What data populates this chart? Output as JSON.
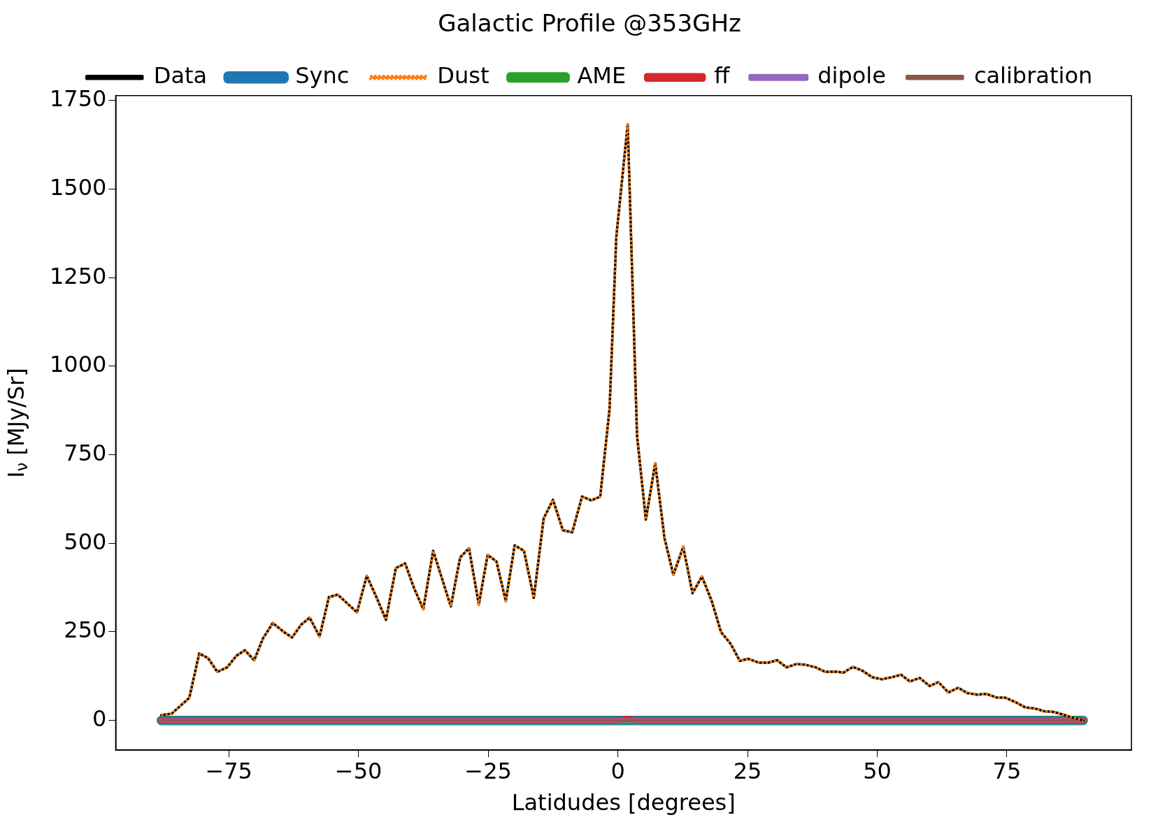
{
  "chart_data": {
    "type": "line",
    "title": "Galactic Profile @353GHz",
    "xlabel": "Latidudes [degrees]",
    "ylabel": "I$_{ν}$ [MJy/Sr]",
    "x": [
      -88,
      -86,
      -82.6,
      -80.7,
      -79,
      -77.2,
      -75.3,
      -73.5,
      -71.9,
      -70.1,
      -68.4,
      -66.5,
      -64.6,
      -62.8,
      -61,
      -59.4,
      -57.5,
      -55.7,
      -54,
      -51.9,
      -50.3,
      -48.4,
      -46.6,
      -44.7,
      -42.8,
      -41,
      -39.3,
      -37.5,
      -35.6,
      -33.8,
      -32.2,
      -30.4,
      -28.7,
      -26.8,
      -25.1,
      -23.4,
      -21.6,
      -19.9,
      -18.1,
      -16.2,
      -14.3,
      -12.5,
      -10.6,
      -8.8,
      -6.9,
      -5.1,
      -3.4,
      -1.6,
      -0.3,
      1.9,
      3.7,
      5.4,
      7.2,
      9,
      10.7,
      12.6,
      14.4,
      16.2,
      18.1,
      19.9,
      21.8,
      23.5,
      25.1,
      27.2,
      29,
      30.7,
      32.5,
      34.4,
      36.2,
      38.1,
      40,
      41.8,
      43.5,
      45.3,
      47.2,
      49,
      50.9,
      52.8,
      54.6,
      56.3,
      58.2,
      60.1,
      61.8,
      63.7,
      65.6,
      67.4,
      69.3,
      71,
      72.9,
      74.7,
      76.6,
      78.5,
      80.3,
      82.2,
      84,
      85.7,
      87.6,
      89.7
    ],
    "series": [
      {
        "name": "Data",
        "color": "#000000",
        "line_style": "solid",
        "values": [
          15,
          19,
          64,
          189,
          176,
          137,
          150,
          183,
          198,
          170,
          232,
          275,
          252,
          234,
          271,
          290,
          237,
          348,
          355,
          327,
          305,
          408,
          350,
          284,
          430,
          443,
          374,
          314,
          479,
          396,
          322,
          460,
          486,
          327,
          467,
          449,
          337,
          494,
          479,
          346,
          570,
          623,
          537,
          531,
          632,
          621,
          632,
          879,
          1365,
          1683,
          804,
          567,
          726,
          514,
          411,
          490,
          359,
          406,
          337,
          249,
          215,
          168,
          174,
          163,
          163,
          170,
          150,
          159,
          157,
          150,
          137,
          138,
          135,
          151,
          140,
          122,
          116,
          122,
          129,
          110,
          120,
          97,
          108,
          79,
          92,
          77,
          73,
          75,
          65,
          64,
          52,
          37,
          34,
          26,
          24,
          17,
          8,
          0
        ]
      },
      {
        "name": "Sync",
        "color": "#1f77b4",
        "line_style": "solid",
        "x": [
          -88,
          89.7
        ],
        "values": [
          0,
          0
        ]
      },
      {
        "name": "Dust",
        "color": "#ff7f0e",
        "line_style": "dotted",
        "values": [
          15,
          19,
          64,
          189,
          176,
          137,
          150,
          183,
          198,
          170,
          232,
          275,
          252,
          234,
          271,
          290,
          237,
          348,
          355,
          327,
          305,
          408,
          350,
          284,
          430,
          443,
          374,
          314,
          479,
          396,
          322,
          460,
          486,
          327,
          467,
          449,
          337,
          494,
          479,
          346,
          570,
          623,
          537,
          531,
          632,
          621,
          632,
          879,
          1365,
          1683,
          804,
          567,
          726,
          514,
          411,
          490,
          359,
          406,
          337,
          249,
          215,
          168,
          174,
          163,
          163,
          170,
          150,
          159,
          157,
          150,
          137,
          138,
          135,
          151,
          140,
          122,
          116,
          122,
          129,
          110,
          120,
          97,
          108,
          79,
          92,
          77,
          73,
          75,
          65,
          64,
          52,
          37,
          34,
          26,
          24,
          17,
          8,
          0
        ]
      },
      {
        "name": "AME",
        "color": "#2ca02c",
        "line_style": "solid",
        "x": [
          -88,
          89.7
        ],
        "values": [
          0,
          0
        ]
      },
      {
        "name": "ff",
        "color": "#d62728",
        "line_style": "solid",
        "x": [
          -88,
          -0.3,
          1.9,
          3.7,
          89.7
        ],
        "values": [
          0,
          0,
          5,
          0,
          0
        ]
      },
      {
        "name": "dipole",
        "color": "#9467bd",
        "line_style": "solid",
        "x": [
          -88,
          89.7
        ],
        "values": [
          0,
          0
        ]
      },
      {
        "name": "calibration",
        "color": "#8c564b",
        "line_style": "solid",
        "x": [
          -88,
          89.7
        ],
        "values": [
          0,
          0
        ]
      }
    ],
    "xlim": [
      -96.8,
      99
    ],
    "ylim": [
      -84,
      1764
    ],
    "xticks": [
      {
        "value": -75,
        "label": "−75"
      },
      {
        "value": -50,
        "label": "−50"
      },
      {
        "value": -25,
        "label": "−25"
      },
      0,
      25,
      50,
      75
    ],
    "yticks": [
      0,
      250,
      500,
      750,
      1000,
      1250,
      1500,
      1750
    ],
    "grid": false,
    "legend": "top",
    "marker": "none"
  }
}
